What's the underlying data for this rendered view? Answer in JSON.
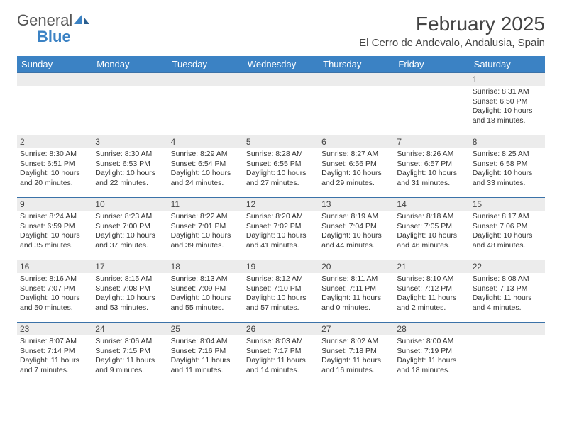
{
  "logo": {
    "general": "General",
    "blue": "Blue"
  },
  "title": "February 2025",
  "location": "El Cerro de Andevalo, Andalusia, Spain",
  "columns": [
    "Sunday",
    "Monday",
    "Tuesday",
    "Wednesday",
    "Thursday",
    "Friday",
    "Saturday"
  ],
  "colors": {
    "header_bg": "#3b82c4",
    "header_text": "#ffffff",
    "daynum_bg": "#ececec",
    "row_border": "#3b72a8",
    "body_text": "#333333",
    "title_text": "#444444"
  },
  "fonts": {
    "title_size_pt": 21,
    "location_size_pt": 11,
    "weekday_size_pt": 10,
    "daynum_size_pt": 9,
    "cell_size_pt": 8
  },
  "weeks": [
    [
      {
        "day": "",
        "lines": []
      },
      {
        "day": "",
        "lines": []
      },
      {
        "day": "",
        "lines": []
      },
      {
        "day": "",
        "lines": []
      },
      {
        "day": "",
        "lines": []
      },
      {
        "day": "",
        "lines": []
      },
      {
        "day": "1",
        "lines": [
          "Sunrise: 8:31 AM",
          "Sunset: 6:50 PM",
          "Daylight: 10 hours and 18 minutes."
        ]
      }
    ],
    [
      {
        "day": "2",
        "lines": [
          "Sunrise: 8:30 AM",
          "Sunset: 6:51 PM",
          "Daylight: 10 hours and 20 minutes."
        ]
      },
      {
        "day": "3",
        "lines": [
          "Sunrise: 8:30 AM",
          "Sunset: 6:53 PM",
          "Daylight: 10 hours and 22 minutes."
        ]
      },
      {
        "day": "4",
        "lines": [
          "Sunrise: 8:29 AM",
          "Sunset: 6:54 PM",
          "Daylight: 10 hours and 24 minutes."
        ]
      },
      {
        "day": "5",
        "lines": [
          "Sunrise: 8:28 AM",
          "Sunset: 6:55 PM",
          "Daylight: 10 hours and 27 minutes."
        ]
      },
      {
        "day": "6",
        "lines": [
          "Sunrise: 8:27 AM",
          "Sunset: 6:56 PM",
          "Daylight: 10 hours and 29 minutes."
        ]
      },
      {
        "day": "7",
        "lines": [
          "Sunrise: 8:26 AM",
          "Sunset: 6:57 PM",
          "Daylight: 10 hours and 31 minutes."
        ]
      },
      {
        "day": "8",
        "lines": [
          "Sunrise: 8:25 AM",
          "Sunset: 6:58 PM",
          "Daylight: 10 hours and 33 minutes."
        ]
      }
    ],
    [
      {
        "day": "9",
        "lines": [
          "Sunrise: 8:24 AM",
          "Sunset: 6:59 PM",
          "Daylight: 10 hours and 35 minutes."
        ]
      },
      {
        "day": "10",
        "lines": [
          "Sunrise: 8:23 AM",
          "Sunset: 7:00 PM",
          "Daylight: 10 hours and 37 minutes."
        ]
      },
      {
        "day": "11",
        "lines": [
          "Sunrise: 8:22 AM",
          "Sunset: 7:01 PM",
          "Daylight: 10 hours and 39 minutes."
        ]
      },
      {
        "day": "12",
        "lines": [
          "Sunrise: 8:20 AM",
          "Sunset: 7:02 PM",
          "Daylight: 10 hours and 41 minutes."
        ]
      },
      {
        "day": "13",
        "lines": [
          "Sunrise: 8:19 AM",
          "Sunset: 7:04 PM",
          "Daylight: 10 hours and 44 minutes."
        ]
      },
      {
        "day": "14",
        "lines": [
          "Sunrise: 8:18 AM",
          "Sunset: 7:05 PM",
          "Daylight: 10 hours and 46 minutes."
        ]
      },
      {
        "day": "15",
        "lines": [
          "Sunrise: 8:17 AM",
          "Sunset: 7:06 PM",
          "Daylight: 10 hours and 48 minutes."
        ]
      }
    ],
    [
      {
        "day": "16",
        "lines": [
          "Sunrise: 8:16 AM",
          "Sunset: 7:07 PM",
          "Daylight: 10 hours and 50 minutes."
        ]
      },
      {
        "day": "17",
        "lines": [
          "Sunrise: 8:15 AM",
          "Sunset: 7:08 PM",
          "Daylight: 10 hours and 53 minutes."
        ]
      },
      {
        "day": "18",
        "lines": [
          "Sunrise: 8:13 AM",
          "Sunset: 7:09 PM",
          "Daylight: 10 hours and 55 minutes."
        ]
      },
      {
        "day": "19",
        "lines": [
          "Sunrise: 8:12 AM",
          "Sunset: 7:10 PM",
          "Daylight: 10 hours and 57 minutes."
        ]
      },
      {
        "day": "20",
        "lines": [
          "Sunrise: 8:11 AM",
          "Sunset: 7:11 PM",
          "Daylight: 11 hours and 0 minutes."
        ]
      },
      {
        "day": "21",
        "lines": [
          "Sunrise: 8:10 AM",
          "Sunset: 7:12 PM",
          "Daylight: 11 hours and 2 minutes."
        ]
      },
      {
        "day": "22",
        "lines": [
          "Sunrise: 8:08 AM",
          "Sunset: 7:13 PM",
          "Daylight: 11 hours and 4 minutes."
        ]
      }
    ],
    [
      {
        "day": "23",
        "lines": [
          "Sunrise: 8:07 AM",
          "Sunset: 7:14 PM",
          "Daylight: 11 hours and 7 minutes."
        ]
      },
      {
        "day": "24",
        "lines": [
          "Sunrise: 8:06 AM",
          "Sunset: 7:15 PM",
          "Daylight: 11 hours and 9 minutes."
        ]
      },
      {
        "day": "25",
        "lines": [
          "Sunrise: 8:04 AM",
          "Sunset: 7:16 PM",
          "Daylight: 11 hours and 11 minutes."
        ]
      },
      {
        "day": "26",
        "lines": [
          "Sunrise: 8:03 AM",
          "Sunset: 7:17 PM",
          "Daylight: 11 hours and 14 minutes."
        ]
      },
      {
        "day": "27",
        "lines": [
          "Sunrise: 8:02 AM",
          "Sunset: 7:18 PM",
          "Daylight: 11 hours and 16 minutes."
        ]
      },
      {
        "day": "28",
        "lines": [
          "Sunrise: 8:00 AM",
          "Sunset: 7:19 PM",
          "Daylight: 11 hours and 18 minutes."
        ]
      },
      {
        "day": "",
        "lines": []
      }
    ]
  ]
}
